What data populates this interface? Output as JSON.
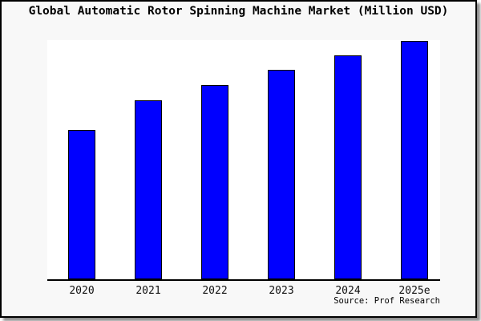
{
  "title": "Global Automatic Rotor Spinning Machine Market (Million USD)",
  "source": "Source: Prof Research",
  "chart_data": {
    "type": "bar",
    "title": "Global Automatic Rotor Spinning Machine Market (Million USD)",
    "categories": [
      "2020",
      "2021",
      "2022",
      "2023",
      "2024",
      "2025e"
    ],
    "values": [
      188,
      225,
      244,
      263,
      281,
      299
    ],
    "values_note": "No y-axis scale or data labels are shown in the chart; values are bar heights in pixels (relative magnitudes only)",
    "values_normalized_to_max": [
      0.629,
      0.753,
      0.816,
      0.88,
      0.94,
      1.0
    ],
    "xlabel": "",
    "ylabel": "",
    "y_axis_ticks": "none",
    "x_axis_line": true,
    "grid": false,
    "legend": "none",
    "annotation": "Source: Prof Research",
    "bar_color": "#0000ff",
    "bar_edge_color": "#000000",
    "figure_background_color": "#f8f8f8",
    "plot_background_color": "#ffffff",
    "frame_border_color": "#000000"
  }
}
